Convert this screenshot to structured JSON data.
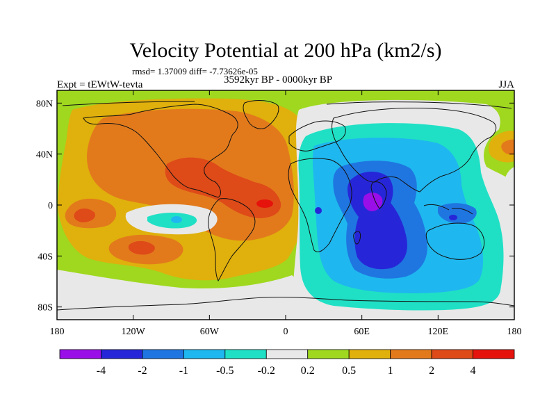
{
  "title": "Velocity Potential at 200 hPa (km2/s)",
  "stats_line": "rmsd= 1.37009 diff= -7.73626e-05",
  "experiment_label": "Expt = tEWtW-tevta",
  "period_label": "3592kyr BP - 0000kyr BP",
  "season_label": "JJA",
  "map": {
    "lon_range": [
      -180,
      180
    ],
    "lat_range": [
      -90,
      90
    ],
    "lon_ticks": [
      {
        "value": -180,
        "label": "180"
      },
      {
        "value": -120,
        "label": "120W"
      },
      {
        "value": -60,
        "label": "60W"
      },
      {
        "value": 0,
        "label": "0"
      },
      {
        "value": 60,
        "label": "60E"
      },
      {
        "value": 120,
        "label": "120E"
      },
      {
        "value": 180,
        "label": "180"
      }
    ],
    "lat_ticks": [
      {
        "value": 80,
        "label": "80N"
      },
      {
        "value": 40,
        "label": "40N"
      },
      {
        "value": 0,
        "label": "0"
      },
      {
        "value": -40,
        "label": "40S"
      },
      {
        "value": -80,
        "label": "80S"
      }
    ]
  },
  "colorbar": {
    "labels": [
      "-4",
      "-2",
      "-1",
      "-0.5",
      "-0.2",
      "0.2",
      "0.5",
      "1",
      "2",
      "4"
    ],
    "colors": [
      "#9a0ee8",
      "#2626d8",
      "#1f76e0",
      "#1fb7ef",
      "#1fe0c5",
      "#e8e8e8",
      "#9fd81f",
      "#e0b00c",
      "#e27a1c",
      "#de4a18",
      "#e6120c"
    ]
  }
}
